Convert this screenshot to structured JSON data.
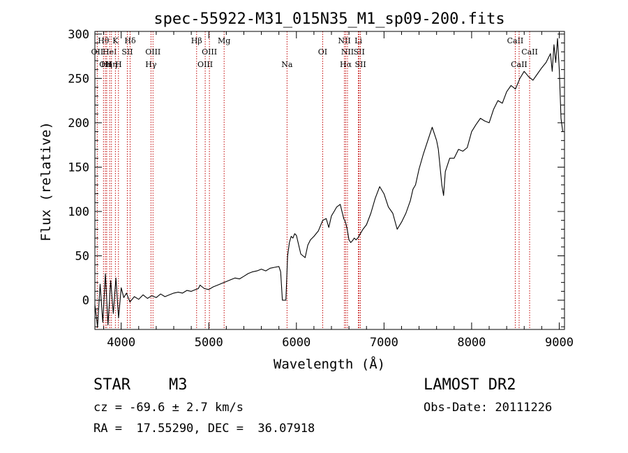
{
  "chart_data": {
    "type": "line",
    "title": "spec-55922-M31_015N35_M1_sp09-200.fits",
    "xlabel": "Wavelength (Å)",
    "ylabel": "Flux (relative)",
    "xlim": [
      3700,
      9060
    ],
    "ylim": [
      -33,
      303
    ],
    "xticks": [
      4000,
      5000,
      6000,
      7000,
      8000,
      9000
    ],
    "yticks": [
      0,
      50,
      100,
      150,
      200,
      250,
      300
    ],
    "grid": false,
    "series": [
      {
        "x": [
          3700,
          3730,
          3760,
          3790,
          3820,
          3850,
          3880,
          3910,
          3940,
          3970,
          4000,
          4030,
          4060,
          4100,
          4150,
          4200,
          4250,
          4300,
          4350,
          4400,
          4450,
          4500,
          4550,
          4600,
          4650,
          4700,
          4750,
          4800,
          4850,
          4880,
          4900,
          4950,
          5000,
          5050,
          5100,
          5150,
          5200,
          5250,
          5300,
          5350,
          5400,
          5450,
          5500,
          5550,
          5600,
          5650,
          5700,
          5750,
          5800,
          5820,
          5840,
          5860,
          5880,
          5900,
          5920,
          5940,
          5960,
          5980,
          6000,
          6050,
          6100,
          6130,
          6160,
          6200,
          6250,
          6300,
          6340,
          6370,
          6400,
          6430,
          6460,
          6500,
          6520,
          6540,
          6560,
          6580,
          6600,
          6620,
          6640,
          6660,
          6680,
          6700,
          6730,
          6760,
          6800,
          6850,
          6900,
          6950,
          7000,
          7050,
          7100,
          7150,
          7200,
          7250,
          7300,
          7330,
          7360,
          7400,
          7450,
          7500,
          7550,
          7600,
          7620,
          7640,
          7660,
          7680,
          7700,
          7750,
          7800,
          7850,
          7900,
          7950,
          8000,
          8050,
          8100,
          8150,
          8200,
          8250,
          8300,
          8350,
          8400,
          8450,
          8500,
          8550,
          8600,
          8650,
          8700,
          8750,
          8800,
          8850,
          8900,
          8920,
          8940,
          8960,
          8980,
          9000,
          9020,
          9040
        ],
        "y": [
          -5,
          -30,
          18,
          -25,
          30,
          -28,
          22,
          -15,
          25,
          -20,
          14,
          3,
          8,
          -2,
          4,
          1,
          6,
          2,
          5,
          3,
          7,
          4,
          6,
          8,
          9,
          8,
          11,
          10,
          12,
          13,
          17,
          13,
          12,
          15,
          17,
          19,
          21,
          23,
          25,
          24,
          27,
          30,
          32,
          33,
          35,
          33,
          36,
          37,
          38,
          32,
          0,
          0,
          0,
          50,
          65,
          72,
          70,
          75,
          73,
          52,
          48,
          62,
          68,
          72,
          78,
          90,
          92,
          82,
          95,
          100,
          105,
          108,
          100,
          92,
          88,
          80,
          68,
          65,
          67,
          70,
          68,
          70,
          75,
          80,
          85,
          98,
          115,
          128,
          120,
          105,
          98,
          80,
          88,
          98,
          112,
          125,
          130,
          148,
          165,
          180,
          195,
          180,
          170,
          150,
          130,
          118,
          145,
          160,
          160,
          170,
          168,
          172,
          190,
          198,
          205,
          202,
          200,
          215,
          225,
          222,
          235,
          242,
          238,
          250,
          258,
          252,
          248,
          255,
          262,
          268,
          278,
          258,
          288,
          268,
          295,
          260,
          205,
          190
        ]
      }
    ],
    "lines": [
      {
        "wl": 3727,
        "label": "OII",
        "row": 2
      },
      {
        "wl": 3798,
        "label": "Hθ",
        "row": 1
      },
      {
        "wl": 3820,
        "label": "OII",
        "row": 3
      },
      {
        "wl": 3835,
        "label": "Hη",
        "row": 3
      },
      {
        "wl": 3869,
        "label": "HeI",
        "row": 2
      },
      {
        "wl": 3889,
        "label": "Hη",
        "row": 3
      },
      {
        "wl": 3934,
        "label": "K",
        "row": 1
      },
      {
        "wl": 3969,
        "label": "H",
        "row": 3
      },
      {
        "wl": 4070,
        "label": "SII",
        "row": 2
      },
      {
        "wl": 4102,
        "label": "Hδ",
        "row": 1
      },
      {
        "wl": 4340,
        "label": "Hγ",
        "row": 3
      },
      {
        "wl": 4363,
        "label": "OIII",
        "row": 2
      },
      {
        "wl": 4861,
        "label": "Hβ",
        "row": 1
      },
      {
        "wl": 4959,
        "label": "OIII",
        "row": 3
      },
      {
        "wl": 5007,
        "label": "OIII",
        "row": 2
      },
      {
        "wl": 5175,
        "label": "Mg",
        "row": 1
      },
      {
        "wl": 5893,
        "label": "Na",
        "row": 3
      },
      {
        "wl": 6300,
        "label": "OI",
        "row": 2
      },
      {
        "wl": 6548,
        "label": "NII",
        "row": 1
      },
      {
        "wl": 6563,
        "label": "Hα",
        "row": 3
      },
      {
        "wl": 6583,
        "label": "NII",
        "row": 2
      },
      {
        "wl": 6707,
        "label": "Li",
        "row": 1
      },
      {
        "wl": 6716,
        "label": "SII",
        "row": 2
      },
      {
        "wl": 6731,
        "label": "SII",
        "row": 3
      },
      {
        "wl": 8498,
        "label": "CaII",
        "row": 1
      },
      {
        "wl": 8542,
        "label": "CaII",
        "row": 3
      },
      {
        "wl": 8662,
        "label": "CaII",
        "row": 2
      }
    ]
  },
  "info": {
    "object_class": "STAR",
    "subclass": "M3",
    "survey": "LAMOST DR2",
    "redshift": "cz = -69.6 ± 2.7 km/s",
    "obs_date": "Obs-Date: 20111226",
    "coords": "RA =  17.55290, DEC =  36.07918"
  },
  "colors": {
    "spectrum": "#000000",
    "line_markers": "#c00000",
    "axes": "#000000"
  }
}
